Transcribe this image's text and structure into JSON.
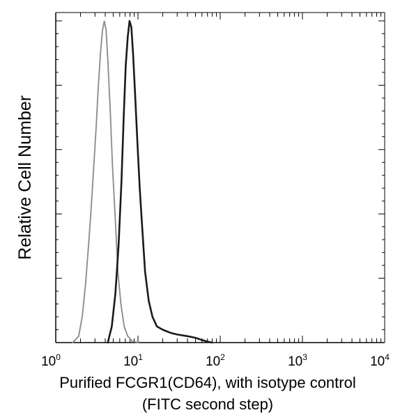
{
  "chart_data": {
    "type": "line",
    "title": "",
    "xlabel_line1": "Purified FCGR1(CD64), with isotype control",
    "xlabel_line2": "(FITC second step)",
    "ylabel": "Relative Cell Number",
    "x_scale": "log",
    "xlim": [
      1,
      10000
    ],
    "ylim": [
      0,
      100
    ],
    "x_ticks": [
      {
        "base": "10",
        "exp": "0"
      },
      {
        "base": "10",
        "exp": "1"
      },
      {
        "base": "10",
        "exp": "2"
      },
      {
        "base": "10",
        "exp": "3"
      },
      {
        "base": "10",
        "exp": "4"
      }
    ],
    "y_major_ticks": [
      0,
      20,
      40,
      60,
      80,
      100
    ],
    "grid": false,
    "legend": "none",
    "series": [
      {
        "style": "dotted-gray",
        "color": "#8c8c8c",
        "x": [
          1.6,
          1.9,
          2.1,
          2.3,
          2.5,
          2.7,
          2.9,
          3.1,
          3.3,
          3.5,
          3.7,
          3.9,
          4.1,
          4.3,
          4.6,
          4.9,
          5.3,
          5.7,
          6.2,
          6.8,
          7.5,
          8.5,
          10
        ],
        "y": [
          0,
          2,
          8,
          18,
          30,
          42,
          55,
          67,
          80,
          90,
          97,
          100,
          97,
          88,
          72,
          55,
          38,
          22,
          12,
          5,
          2,
          0.5,
          0
        ]
      },
      {
        "style": "solid-black",
        "color": "#1a1a1a",
        "x": [
          4.3,
          4.8,
          5.3,
          5.8,
          6.3,
          6.7,
          7.1,
          7.5,
          7.9,
          8.3,
          8.7,
          9.2,
          9.8,
          10.5,
          11.3,
          12.2,
          13.5,
          15,
          17,
          20,
          25,
          30,
          40,
          50,
          60,
          70,
          80
        ],
        "y": [
          0,
          5,
          15,
          30,
          50,
          70,
          86,
          95,
          100,
          98,
          90,
          78,
          63,
          48,
          35,
          22,
          13,
          8,
          5,
          4,
          3,
          2.5,
          2,
          1.5,
          0.8,
          0.3,
          0
        ]
      }
    ]
  }
}
